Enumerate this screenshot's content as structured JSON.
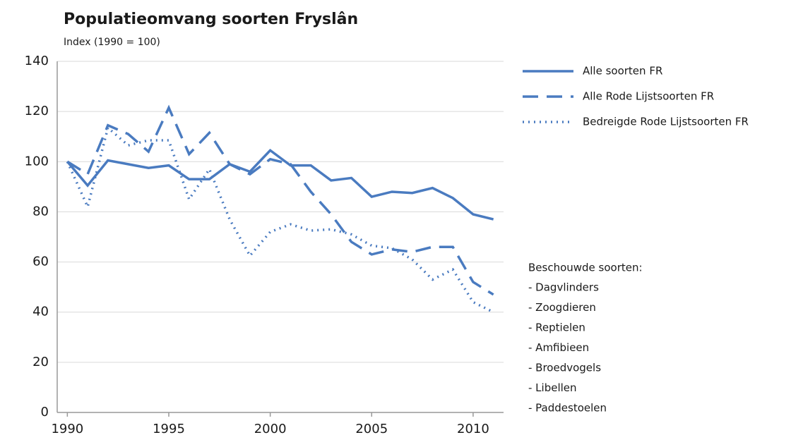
{
  "chart_data": {
    "type": "line",
    "title": "Populatieomvang  soorten  Fryslân",
    "subtitle": "Index (1990 = 100)",
    "x": [
      1990,
      1991,
      1992,
      1993,
      1994,
      1995,
      1996,
      1997,
      1998,
      1999,
      2000,
      2001,
      2002,
      2003,
      2004,
      2005,
      2006,
      2007,
      2008,
      2009,
      2010,
      2011
    ],
    "series": [
      {
        "name": "Alle soorten FR",
        "color": "#4a7bc0",
        "style": "solid",
        "values": [
          100,
          90.5,
          100.5,
          99,
          97.5,
          98.5,
          93,
          93,
          99,
          96,
          104.5,
          98.5,
          98.5,
          92.5,
          93.5,
          86,
          88,
          87.5,
          89.5,
          85.5,
          79,
          77
        ]
      },
      {
        "name": "Alle Rode Lijstsoorten FR",
        "color": "#4a7bc0",
        "style": "dashed",
        "values": [
          100,
          95,
          114.5,
          111,
          104,
          121.5,
          103,
          111.5,
          99,
          95,
          101,
          99,
          88,
          79,
          68,
          63,
          65,
          64,
          66,
          66,
          52,
          47
        ]
      },
      {
        "name": "Bedreigde Rode Lijstsoorten FR",
        "color": "#4a7bc0",
        "style": "dotted",
        "values": [
          100,
          82,
          113.5,
          106.5,
          108.5,
          108.5,
          85,
          97,
          77,
          62.5,
          72,
          75,
          72.5,
          73,
          71,
          66.5,
          65.5,
          61,
          53,
          57,
          44,
          40
        ]
      }
    ],
    "xlim": [
      1989.5,
      2011.5
    ],
    "xticks": [
      1990,
      1995,
      2000,
      2005,
      2010
    ],
    "ylim": [
      0,
      140
    ],
    "yticks": [
      0,
      20,
      40,
      60,
      80,
      100,
      120,
      140
    ],
    "grid": true,
    "legend": "upper right",
    "annotation_title": "Beschouwde soorten:",
    "annotations": [
      "- Dagvlinders",
      "- Zoogdieren",
      "- Reptielen",
      "- Amfibieen",
      "- Broedvogels",
      "- Libellen",
      "- Paddestoelen"
    ]
  }
}
